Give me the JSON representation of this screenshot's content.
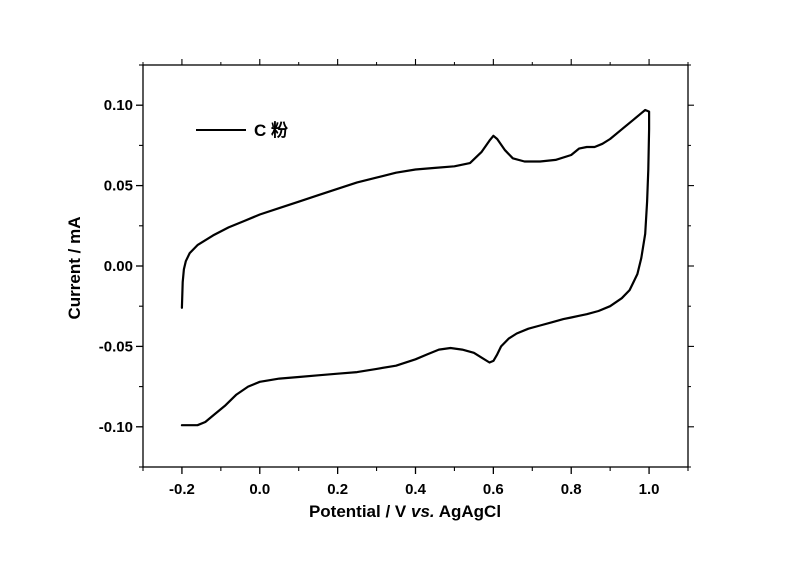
{
  "chart_data": {
    "type": "line",
    "title": "",
    "xlabel": {
      "main": "Potential / V ",
      "italic": "vs.",
      "tail": " AgAgCl"
    },
    "ylabel": "Current / mA",
    "xlim": [
      -0.3,
      1.1
    ],
    "ylim": [
      -0.125,
      0.125
    ],
    "x_ticks": [
      -0.2,
      0.0,
      0.2,
      0.4,
      0.6,
      0.8,
      1.0
    ],
    "x_tick_labels": [
      "-0.2",
      "0.0",
      "0.2",
      "0.4",
      "0.6",
      "0.8",
      "1.0"
    ],
    "y_ticks": [
      -0.1,
      -0.05,
      0.0,
      0.05,
      0.1
    ],
    "y_tick_labels": [
      "-0.10",
      "-0.05",
      "0.00",
      "0.05",
      "0.10"
    ],
    "grid": false,
    "legend_position": "top-left",
    "series": [
      {
        "name": "C 粉",
        "color": "#000000",
        "x": [
          -0.2,
          -0.198,
          -0.195,
          -0.19,
          -0.18,
          -0.16,
          -0.12,
          -0.08,
          -0.04,
          0.0,
          0.05,
          0.1,
          0.15,
          0.2,
          0.25,
          0.3,
          0.35,
          0.4,
          0.45,
          0.5,
          0.54,
          0.57,
          0.59,
          0.6,
          0.61,
          0.63,
          0.65,
          0.68,
          0.72,
          0.76,
          0.8,
          0.82,
          0.84,
          0.86,
          0.88,
          0.9,
          0.93,
          0.96,
          0.98,
          0.99,
          1.0,
          1.0,
          0.998,
          0.995,
          0.99,
          0.98,
          0.97,
          0.96,
          0.95,
          0.93,
          0.9,
          0.87,
          0.84,
          0.82,
          0.8,
          0.78,
          0.75,
          0.72,
          0.69,
          0.66,
          0.64,
          0.62,
          0.61,
          0.6,
          0.59,
          0.57,
          0.55,
          0.52,
          0.49,
          0.46,
          0.43,
          0.4,
          0.35,
          0.3,
          0.25,
          0.2,
          0.15,
          0.1,
          0.05,
          0.0,
          -0.03,
          -0.06,
          -0.09,
          -0.12,
          -0.14,
          -0.16,
          -0.18,
          -0.2
        ],
        "y": [
          -0.026,
          -0.01,
          -0.002,
          0.003,
          0.008,
          0.013,
          0.019,
          0.024,
          0.028,
          0.032,
          0.036,
          0.04,
          0.044,
          0.048,
          0.052,
          0.055,
          0.058,
          0.06,
          0.061,
          0.062,
          0.064,
          0.071,
          0.078,
          0.081,
          0.079,
          0.072,
          0.067,
          0.065,
          0.065,
          0.066,
          0.069,
          0.073,
          0.074,
          0.074,
          0.076,
          0.079,
          0.085,
          0.091,
          0.095,
          0.097,
          0.096,
          0.085,
          0.06,
          0.04,
          0.02,
          0.005,
          -0.005,
          -0.01,
          -0.015,
          -0.02,
          -0.025,
          -0.028,
          -0.03,
          -0.031,
          -0.032,
          -0.033,
          -0.035,
          -0.037,
          -0.039,
          -0.042,
          -0.045,
          -0.05,
          -0.055,
          -0.059,
          -0.06,
          -0.057,
          -0.054,
          -0.052,
          -0.051,
          -0.052,
          -0.055,
          -0.058,
          -0.062,
          -0.064,
          -0.066,
          -0.067,
          -0.068,
          -0.069,
          -0.07,
          -0.072,
          -0.075,
          -0.08,
          -0.087,
          -0.093,
          -0.097,
          -0.099,
          -0.099,
          -0.099
        ]
      }
    ]
  }
}
